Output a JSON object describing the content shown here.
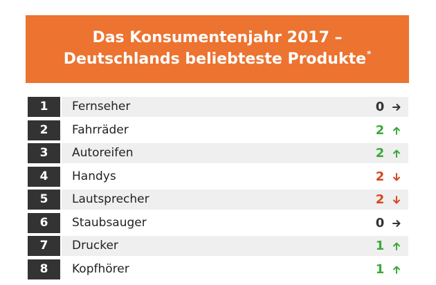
{
  "header": {
    "title_line1": "Das Konsumentenjahr 2017 –",
    "title_line2": "Deutschlands beliebteste Produkte",
    "footnote_mark": "*"
  },
  "colors": {
    "banner": "#ec7330",
    "rank_bg": "#333333",
    "neutral": "#333333",
    "up": "#3aaa35",
    "down": "#d9441b"
  },
  "rows": [
    {
      "rank": "1",
      "product": "Fernseher",
      "change": "0",
      "direction": "right"
    },
    {
      "rank": "2",
      "product": "Fahrräder",
      "change": "2",
      "direction": "up"
    },
    {
      "rank": "3",
      "product": "Autoreifen",
      "change": "2",
      "direction": "up"
    },
    {
      "rank": "4",
      "product": "Handys",
      "change": "2",
      "direction": "down"
    },
    {
      "rank": "5",
      "product": "Lautsprecher",
      "change": "2",
      "direction": "down"
    },
    {
      "rank": "6",
      "product": "Staubsauger",
      "change": "0",
      "direction": "right"
    },
    {
      "rank": "7",
      "product": "Drucker",
      "change": "1",
      "direction": "up"
    },
    {
      "rank": "8",
      "product": "Kopfhörer",
      "change": "1",
      "direction": "up"
    }
  ]
}
